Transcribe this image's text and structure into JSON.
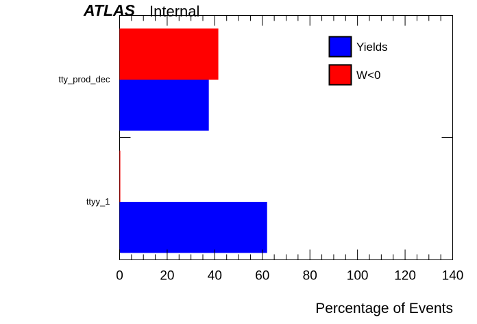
{
  "header": {
    "experiment": "ATLAS",
    "status": "Internal"
  },
  "chart_data": {
    "type": "bar",
    "orientation": "horizontal",
    "categories": [
      "tty_prod_dec",
      "ttyy_1"
    ],
    "series": [
      {
        "name": "Yields",
        "color": "#0000ff",
        "values": [
          37.5,
          62
        ]
      },
      {
        "name": "W<0",
        "color": "#ff0000",
        "values": [
          41.5,
          0.3
        ]
      }
    ],
    "xlabel": "Percentage of Events",
    "ylabel": "",
    "xlim": [
      0,
      140
    ],
    "x_ticks": [
      0,
      20,
      40,
      60,
      80,
      100,
      120,
      140
    ],
    "grid": false,
    "legend_position": "top-right"
  }
}
